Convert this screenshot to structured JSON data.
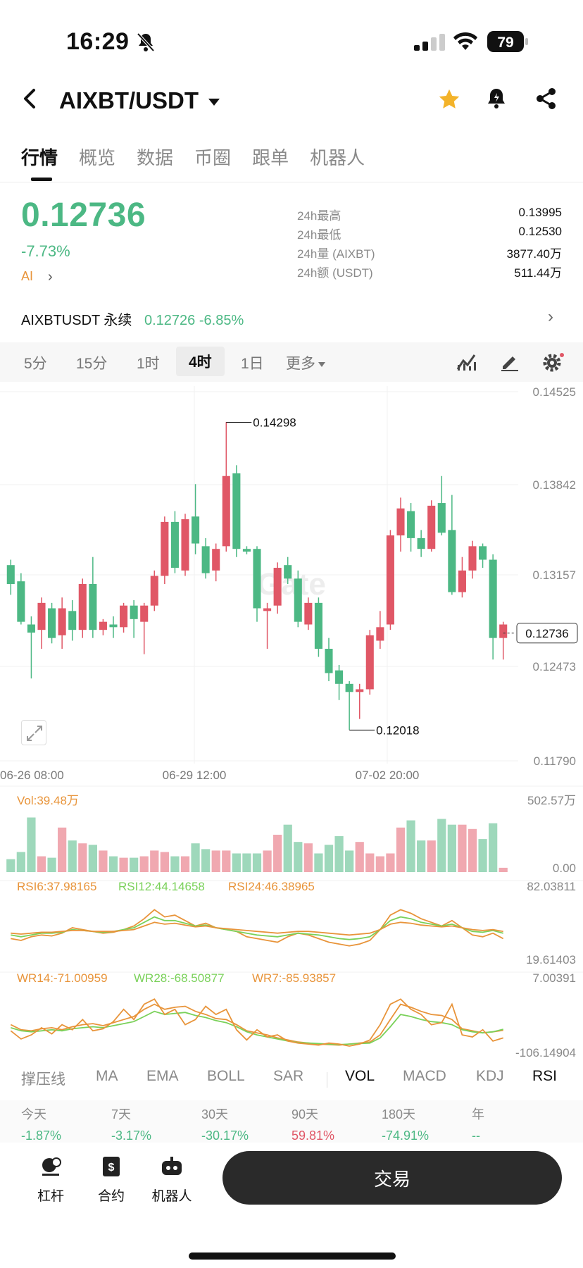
{
  "status_bar": {
    "time": "16:29",
    "battery": "79"
  },
  "header": {
    "pair": "AIXBT/USDT"
  },
  "tabs": [
    "行情",
    "概览",
    "数据",
    "币圈",
    "跟单",
    "机器人"
  ],
  "ticker": {
    "price": "0.12736",
    "change_pct": "-7.73%",
    "ai_label": "AI",
    "stats": [
      {
        "label": "24h最高",
        "value": "0.13995"
      },
      {
        "label": "24h最低",
        "value": "0.12530"
      },
      {
        "label": "24h量 (AIXBT)",
        "value": "3877.40万"
      },
      {
        "label": "24h额 (USDT)",
        "value": "511.44万"
      }
    ]
  },
  "perpetual": {
    "name": "AIXBTUSDT 永续",
    "price": "0.12726",
    "change": "-6.85%"
  },
  "intervals": {
    "items": [
      "5分",
      "15分",
      "1时",
      "4时",
      "1日"
    ],
    "active": "4时",
    "more": "更多"
  },
  "colors": {
    "up": "#e05766",
    "down": "#4cb884",
    "ma_orange": "#e8943a",
    "ma_green": "#7ad15a"
  },
  "chart_data": {
    "type": "candlestick",
    "price_axis_ticks": [
      "0.14525",
      "0.13842",
      "0.13157",
      "0.12473",
      "0.11790"
    ],
    "time_axis_labels": [
      "06-26 08:00",
      "06-29 12:00",
      "07-02 20:00"
    ],
    "high_marker": "0.14298",
    "low_marker": "0.12018",
    "last_price": "0.12736",
    "ylim": [
      0.1179,
      0.14525
    ],
    "candles": [
      {
        "o": 0.1324,
        "h": 0.1328,
        "c": 0.131,
        "l": 0.1302
      },
      {
        "o": 0.1312,
        "h": 0.1318,
        "c": 0.1282,
        "l": 0.128
      },
      {
        "o": 0.128,
        "h": 0.1286,
        "c": 0.1274,
        "l": 0.124
      },
      {
        "o": 0.1276,
        "h": 0.13,
        "c": 0.1296,
        "l": 0.1262
      },
      {
        "o": 0.1292,
        "h": 0.1296,
        "c": 0.127,
        "l": 0.1266
      },
      {
        "o": 0.1272,
        "h": 0.13,
        "c": 0.1292,
        "l": 0.1262
      },
      {
        "o": 0.129,
        "h": 0.1298,
        "c": 0.1276,
        "l": 0.1268
      },
      {
        "o": 0.1276,
        "h": 0.1314,
        "c": 0.131,
        "l": 0.127
      },
      {
        "o": 0.131,
        "h": 0.133,
        "c": 0.1276,
        "l": 0.127
      },
      {
        "o": 0.1276,
        "h": 0.1284,
        "c": 0.1282,
        "l": 0.1272
      },
      {
        "o": 0.128,
        "h": 0.1286,
        "c": 0.1278,
        "l": 0.127
      },
      {
        "o": 0.1278,
        "h": 0.1296,
        "c": 0.1294,
        "l": 0.1274
      },
      {
        "o": 0.1294,
        "h": 0.1298,
        "c": 0.1284,
        "l": 0.127
      },
      {
        "o": 0.1282,
        "h": 0.1296,
        "c": 0.1294,
        "l": 0.1258
      },
      {
        "o": 0.1294,
        "h": 0.132,
        "c": 0.1316,
        "l": 0.129
      },
      {
        "o": 0.1316,
        "h": 0.136,
        "c": 0.1356,
        "l": 0.131
      },
      {
        "o": 0.1356,
        "h": 0.1364,
        "c": 0.1322,
        "l": 0.1318
      },
      {
        "o": 0.132,
        "h": 0.1362,
        "c": 0.1358,
        "l": 0.1316
      },
      {
        "o": 0.136,
        "h": 0.1384,
        "c": 0.134,
        "l": 0.1332
      },
      {
        "o": 0.1338,
        "h": 0.1344,
        "c": 0.1318,
        "l": 0.1314
      },
      {
        "o": 0.132,
        "h": 0.134,
        "c": 0.1336,
        "l": 0.1312
      },
      {
        "o": 0.1338,
        "h": 0.143,
        "c": 0.139,
        "l": 0.1334
      },
      {
        "o": 0.1392,
        "h": 0.1398,
        "c": 0.1336,
        "l": 0.133
      },
      {
        "o": 0.1336,
        "h": 0.1338,
        "c": 0.1334,
        "l": 0.1332
      },
      {
        "o": 0.1336,
        "h": 0.1338,
        "c": 0.1292,
        "l": 0.1282
      },
      {
        "o": 0.129,
        "h": 0.1296,
        "c": 0.1292,
        "l": 0.1262
      },
      {
        "o": 0.1294,
        "h": 0.1326,
        "c": 0.1322,
        "l": 0.1288
      },
      {
        "o": 0.1324,
        "h": 0.133,
        "c": 0.1314,
        "l": 0.131
      },
      {
        "o": 0.1314,
        "h": 0.132,
        "c": 0.1282,
        "l": 0.1278
      },
      {
        "o": 0.128,
        "h": 0.13,
        "c": 0.1296,
        "l": 0.1276
      },
      {
        "o": 0.1296,
        "h": 0.13,
        "c": 0.1262,
        "l": 0.1256
      },
      {
        "o": 0.1262,
        "h": 0.127,
        "c": 0.1244,
        "l": 0.1238
      },
      {
        "o": 0.1246,
        "h": 0.125,
        "c": 0.1236,
        "l": 0.1224
      },
      {
        "o": 0.1236,
        "h": 0.1238,
        "c": 0.123,
        "l": 0.1202
      },
      {
        "o": 0.123,
        "h": 0.1236,
        "c": 0.1232,
        "l": 0.121
      },
      {
        "o": 0.1232,
        "h": 0.1276,
        "c": 0.1272,
        "l": 0.1228
      },
      {
        "o": 0.1268,
        "h": 0.129,
        "c": 0.1278,
        "l": 0.1262
      },
      {
        "o": 0.128,
        "h": 0.135,
        "c": 0.1346,
        "l": 0.1276
      },
      {
        "o": 0.1346,
        "h": 0.1374,
        "c": 0.1366,
        "l": 0.1334
      },
      {
        "o": 0.1364,
        "h": 0.137,
        "c": 0.1344,
        "l": 0.1334
      },
      {
        "o": 0.1344,
        "h": 0.135,
        "c": 0.1336,
        "l": 0.133
      },
      {
        "o": 0.1336,
        "h": 0.1372,
        "c": 0.1368,
        "l": 0.1334
      },
      {
        "o": 0.137,
        "h": 0.139,
        "c": 0.1348,
        "l": 0.1346
      },
      {
        "o": 0.135,
        "h": 0.1376,
        "c": 0.1304,
        "l": 0.1302
      },
      {
        "o": 0.1304,
        "h": 0.133,
        "c": 0.132,
        "l": 0.13
      },
      {
        "o": 0.132,
        "h": 0.1342,
        "c": 0.1338,
        "l": 0.1314
      },
      {
        "o": 0.1338,
        "h": 0.134,
        "c": 0.1328,
        "l": 0.1322
      },
      {
        "o": 0.1328,
        "h": 0.1332,
        "c": 0.127,
        "l": 0.1254
      },
      {
        "o": 0.127,
        "h": 0.1282,
        "c": 0.128,
        "l": 0.1254
      }
    ]
  },
  "volume_panel": {
    "label": "Vol:39.48万",
    "max_tick": "502.57万",
    "min_tick": "0.00",
    "values": [
      0.18,
      0.28,
      0.76,
      0.22,
      0.2,
      0.62,
      0.44,
      0.4,
      0.38,
      0.3,
      0.22,
      0.2,
      0.2,
      0.22,
      0.3,
      0.28,
      0.22,
      0.22,
      0.4,
      0.32,
      0.3,
      0.3,
      0.26,
      0.26,
      0.26,
      0.3,
      0.52,
      0.66,
      0.42,
      0.4,
      0.26,
      0.38,
      0.5,
      0.3,
      0.42,
      0.26,
      0.22,
      0.26,
      0.62,
      0.72,
      0.44,
      0.44,
      0.74,
      0.66,
      0.66,
      0.6,
      0.46,
      0.68,
      0.06
    ]
  },
  "rsi_panel": {
    "labels": [
      "RSI6:37.98165",
      "RSI12:44.14658",
      "RSI24:46.38965"
    ],
    "max_tick": "82.03811",
    "min_tick": "19.61403",
    "rsi6": [
      38,
      36,
      40,
      42,
      41,
      44,
      50,
      48,
      46,
      44,
      45,
      48,
      52,
      60,
      70,
      62,
      64,
      58,
      52,
      55,
      50,
      48,
      46,
      40,
      38,
      36,
      34,
      40,
      44,
      42,
      38,
      34,
      32,
      30,
      32,
      36,
      48,
      64,
      70,
      66,
      60,
      56,
      52,
      58,
      50,
      42,
      40,
      44,
      38
    ],
    "rsi12": [
      42,
      40,
      42,
      44,
      44,
      45,
      48,
      47,
      46,
      45,
      46,
      48,
      50,
      56,
      62,
      58,
      58,
      55,
      52,
      53,
      50,
      48,
      46,
      44,
      42,
      41,
      40,
      42,
      44,
      43,
      42,
      40,
      38,
      37,
      38,
      40,
      48,
      58,
      62,
      60,
      56,
      54,
      52,
      54,
      50,
      46,
      45,
      47,
      44
    ],
    "rsi24": [
      44,
      43,
      44,
      45,
      45,
      46,
      47,
      47,
      46,
      46,
      46,
      47,
      48,
      52,
      56,
      54,
      55,
      53,
      51,
      52,
      50,
      49,
      48,
      47,
      46,
      45,
      44,
      45,
      46,
      46,
      45,
      44,
      43,
      42,
      43,
      44,
      48,
      54,
      56,
      55,
      53,
      52,
      51,
      52,
      50,
      48,
      47,
      48,
      46
    ]
  },
  "wr_panel": {
    "labels": [
      "WR14:-71.00959",
      "WR28:-68.50877",
      "WR7:-85.93857"
    ],
    "max_tick": "7.00391",
    "min_tick": "-106.14904",
    "wr14": [
      -60,
      -70,
      -72,
      -68,
      -66,
      -70,
      -64,
      -60,
      -58,
      -62,
      -56,
      -50,
      -44,
      -30,
      -20,
      -30,
      -26,
      -24,
      -34,
      -40,
      -48,
      -50,
      -60,
      -72,
      -76,
      -80,
      -86,
      -90,
      -94,
      -96,
      -98,
      -99,
      -100,
      -98,
      -96,
      -94,
      -80,
      -50,
      -20,
      -26,
      -34,
      -40,
      -42,
      -50,
      -68,
      -72,
      -76,
      -74,
      -71
    ],
    "wr28": [
      -66,
      -72,
      -74,
      -72,
      -70,
      -72,
      -68,
      -66,
      -64,
      -66,
      -62,
      -58,
      -54,
      -44,
      -34,
      -40,
      -38,
      -36,
      -42,
      -46,
      -52,
      -56,
      -64,
      -74,
      -80,
      -84,
      -88,
      -92,
      -95,
      -96,
      -97,
      -98,
      -99,
      -98,
      -97,
      -96,
      -86,
      -64,
      -40,
      -44,
      -50,
      -54,
      -56,
      -60,
      -70,
      -74,
      -76,
      -74,
      -69
    ],
    "wr7": [
      -72,
      -88,
      -80,
      -66,
      -78,
      -60,
      -70,
      -50,
      -72,
      -68,
      -54,
      -30,
      -50,
      -20,
      -10,
      -40,
      -30,
      -60,
      -50,
      -24,
      -40,
      -30,
      -70,
      -90,
      -70,
      -84,
      -80,
      -92,
      -96,
      -98,
      -100,
      -96,
      -98,
      -102,
      -98,
      -90,
      -60,
      -20,
      -10,
      -30,
      -40,
      -60,
      -56,
      -20,
      -80,
      -84,
      -70,
      -92,
      -86
    ]
  },
  "indicator_tabs": [
    "撑压线",
    "MA",
    "EMA",
    "BOLL",
    "SAR",
    "VOL",
    "MACD",
    "KDJ",
    "RSI"
  ],
  "active_indicators": [
    "VOL",
    "RSI"
  ],
  "periods": [
    {
      "label": "今天",
      "value": "-1.87%",
      "tone": "down"
    },
    {
      "label": "7天",
      "value": "-3.17%",
      "tone": "down"
    },
    {
      "label": "30天",
      "value": "-30.17%",
      "tone": "down"
    },
    {
      "label": "90天",
      "value": "59.81%",
      "tone": "up"
    },
    {
      "label": "180天",
      "value": "-74.91%",
      "tone": "down"
    },
    {
      "label": "年",
      "value": "--",
      "tone": "down"
    }
  ],
  "bottom_bar": {
    "lever": "杠杆",
    "contract": "合约",
    "robot": "机器人",
    "trade": "交易"
  }
}
